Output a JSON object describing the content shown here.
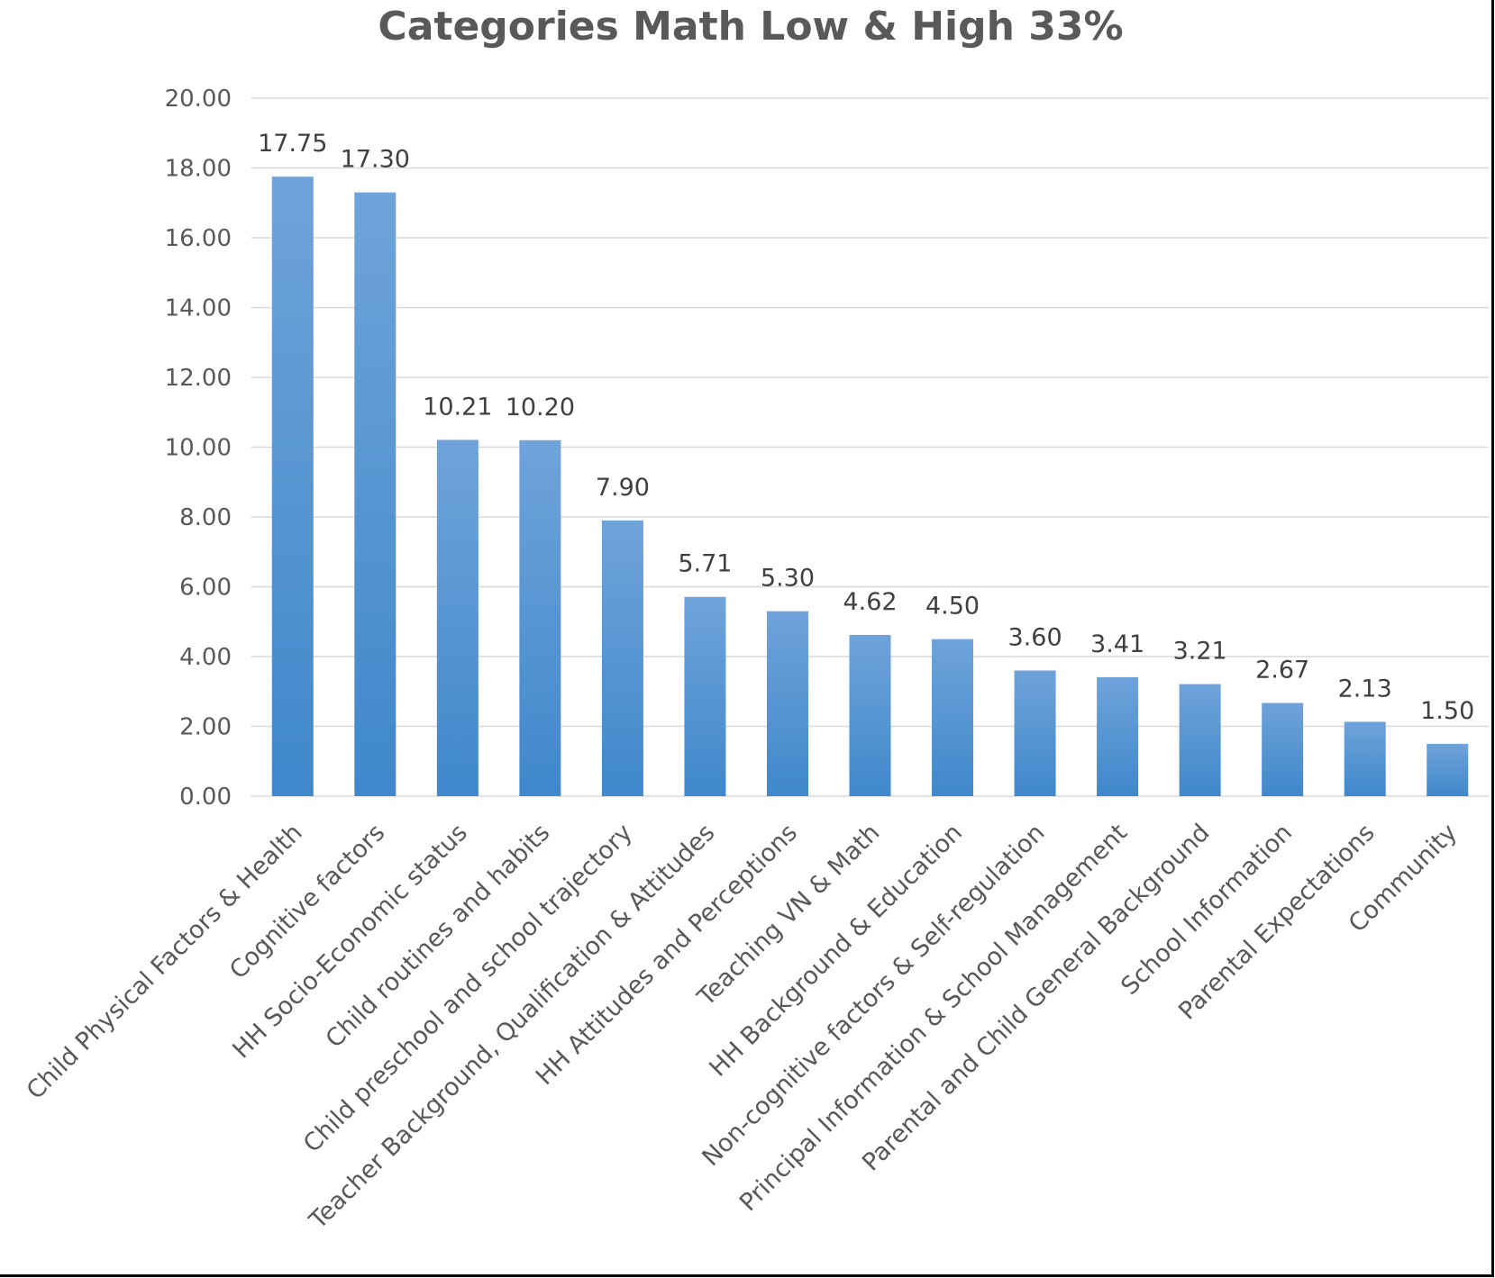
{
  "chart_data": {
    "type": "bar",
    "title": "Categories Math Low & High 33%",
    "xlabel": "",
    "ylabel": "",
    "ylim": [
      0,
      20
    ],
    "y_ticks": [
      "0.00",
      "2.00",
      "4.00",
      "6.00",
      "8.00",
      "10.00",
      "12.00",
      "14.00",
      "16.00",
      "18.00",
      "20.00"
    ],
    "grid": true,
    "legend": "none",
    "bar_color": "#5b9bd5",
    "categories": [
      "Child Physical Factors & Health",
      "Cognitive factors",
      "HH Socio-Economic status",
      "Child routines and habits",
      "Child preschool and school trajectory",
      "Teacher Background, Qualification & Attitudes",
      "HH Attitudes and Perceptions",
      "Teaching VN & Math",
      "HH Background & Education",
      "Non-cognitive factors & Self-regulation",
      "Principal Information & School Management",
      "Parental and Child General Background",
      "School Information",
      "Parental Expectations",
      "Community"
    ],
    "values": [
      17.75,
      17.3,
      10.21,
      10.2,
      7.9,
      5.71,
      5.3,
      4.62,
      4.5,
      3.6,
      3.41,
      3.21,
      2.67,
      2.13,
      1.5
    ],
    "data_labels": [
      "17.75",
      "17.30",
      "10.21",
      "10.20",
      "7.90",
      "5.71",
      "5.30",
      "4.62",
      "4.50",
      "3.60",
      "3.41",
      "3.21",
      "2.67",
      "2.13",
      "1.50"
    ]
  }
}
